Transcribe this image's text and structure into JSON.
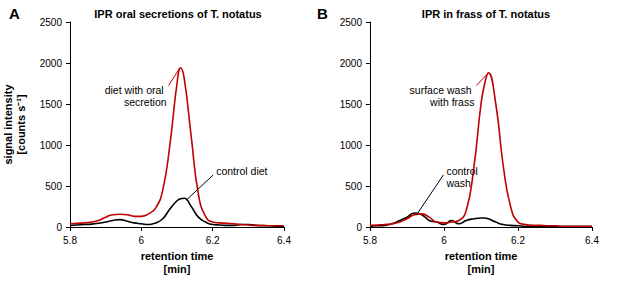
{
  "chart_data": [
    {
      "type": "line",
      "panel_label": "A",
      "title": "IPR oral secretions of T. notatus",
      "x_label": "retention time [min]",
      "y_label": "signal intensity [counts s⁻¹]",
      "x": [
        5.8,
        5.82,
        5.84,
        5.86,
        5.88,
        5.9,
        5.92,
        5.94,
        5.96,
        5.98,
        6,
        6.02,
        6.04,
        6.06,
        6.08,
        6.1,
        6.11,
        6.12,
        6.14,
        6.16,
        6.18,
        6.2,
        6.22,
        6.24,
        6.26,
        6.28,
        6.3,
        6.32,
        6.34,
        6.36,
        6.38,
        6.4
      ],
      "xlim": [
        5.8,
        6.4
      ],
      "xticks": [
        5.8,
        6,
        6.2,
        6.4
      ],
      "ylim": [
        0,
        2500
      ],
      "yticks": [
        0,
        500,
        1000,
        1500,
        2000,
        2500
      ],
      "grid": false,
      "series": [
        {
          "name": "diet with oral secretion",
          "color": "#c00000",
          "values": [
            40,
            45,
            50,
            60,
            80,
            120,
            150,
            155,
            150,
            130,
            130,
            160,
            230,
            450,
            1000,
            1750,
            1940,
            1820,
            1100,
            400,
            130,
            60,
            50,
            45,
            40,
            30,
            25,
            20,
            20,
            15,
            15,
            15
          ]
        },
        {
          "name": "control diet",
          "color": "#000000",
          "values": [
            20,
            25,
            30,
            35,
            45,
            60,
            80,
            90,
            70,
            50,
            40,
            30,
            50,
            100,
            220,
            320,
            345,
            350,
            250,
            120,
            60,
            30,
            25,
            20,
            20,
            30,
            30,
            20,
            15,
            15,
            10,
            10
          ]
        }
      ]
    },
    {
      "type": "line",
      "panel_label": "B",
      "title": "IPR in frass of T. notatus",
      "x_label": "retention time [min]",
      "x": [
        5.8,
        5.82,
        5.84,
        5.86,
        5.88,
        5.9,
        5.92,
        5.94,
        5.96,
        5.98,
        6,
        6.02,
        6.04,
        6.06,
        6.08,
        6.1,
        6.11,
        6.12,
        6.14,
        6.16,
        6.18,
        6.2,
        6.22,
        6.24,
        6.26,
        6.28,
        6.3,
        6.32,
        6.34,
        6.36,
        6.38,
        6.4
      ],
      "xlim": [
        5.8,
        6.4
      ],
      "xticks": [
        5.8,
        6,
        6.2,
        6.4
      ],
      "ylim": [
        0,
        2500
      ],
      "yticks": [
        0,
        500,
        1000,
        1500,
        2000,
        2500
      ],
      "grid": false,
      "series": [
        {
          "name": "surface wash with frass",
          "color": "#c00000",
          "values": [
            20,
            25,
            30,
            40,
            60,
            100,
            150,
            160,
            120,
            60,
            50,
            60,
            80,
            200,
            700,
            1500,
            1750,
            1880,
            1500,
            750,
            250,
            60,
            30,
            20,
            20,
            15,
            15,
            10,
            10,
            10,
            10,
            10
          ]
        },
        {
          "name": "control wash",
          "color": "#000000",
          "values": [
            10,
            15,
            20,
            40,
            80,
            120,
            170,
            150,
            80,
            60,
            30,
            80,
            40,
            80,
            100,
            110,
            110,
            100,
            60,
            30,
            20,
            15,
            10,
            10,
            5,
            5,
            5,
            5,
            5,
            5,
            5,
            5
          ]
        }
      ]
    }
  ]
}
